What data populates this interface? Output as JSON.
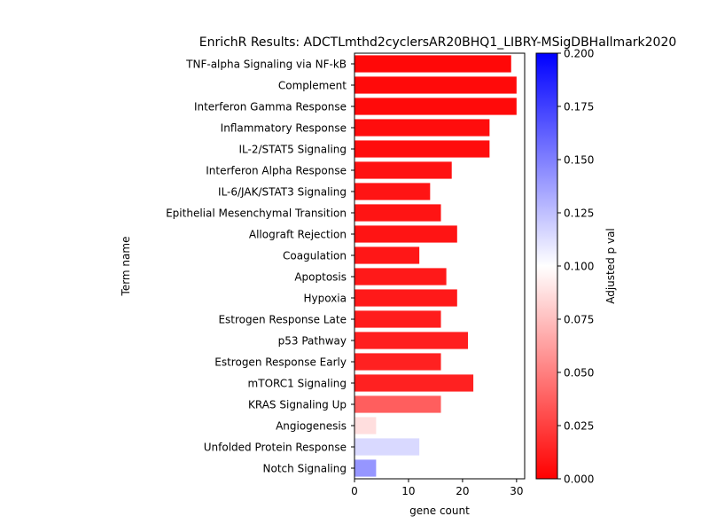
{
  "chart_data": {
    "type": "bar",
    "orientation": "horizontal",
    "title": "EnrichR Results: ADCTLmthd2cyclersAR20BHQ1_LIBRY-MSigDBHallmark2020",
    "xlabel": "gene count",
    "ylabel": "Term name",
    "xlim": [
      0,
      31.5
    ],
    "xticks": [
      0,
      10,
      20,
      30
    ],
    "grid": false,
    "colorbar": {
      "label": "Adjusted p val",
      "range": [
        0,
        0.2
      ],
      "ticks": [
        "0.000",
        "0.025",
        "0.050",
        "0.075",
        "0.100",
        "0.125",
        "0.150",
        "0.175",
        "0.200"
      ],
      "colormap": "bwr_r",
      "low_color": "#ff0000",
      "mid_color": "#ffffff",
      "high_color": "#0000ff"
    },
    "categories": [
      "TNF-alpha Signaling via NF-kB",
      "Complement",
      "Interferon Gamma Response",
      "Inflammatory Response",
      "IL-2/STAT5 Signaling",
      "Interferon Alpha Response",
      "IL-6/JAK/STAT3 Signaling",
      "Epithelial Mesenchymal Transition",
      "Allograft Rejection",
      "Coagulation",
      "Apoptosis",
      "Hypoxia",
      "Estrogen Response Late",
      "p53 Pathway",
      "Estrogen Response Early",
      "mTORC1 Signaling",
      "KRAS Signaling Up",
      "Angiogenesis",
      "Unfolded Protein Response",
      "Notch Signaling"
    ],
    "values": [
      29,
      30,
      30,
      25,
      25,
      18,
      14,
      16,
      19,
      12,
      17,
      19,
      16,
      21,
      16,
      22,
      16,
      4,
      12,
      4
    ],
    "adjusted_p": [
      0.003,
      0.004,
      0.004,
      0.005,
      0.005,
      0.007,
      0.008,
      0.008,
      0.008,
      0.009,
      0.01,
      0.01,
      0.011,
      0.012,
      0.013,
      0.013,
      0.037,
      0.087,
      0.115,
      0.141
    ]
  }
}
